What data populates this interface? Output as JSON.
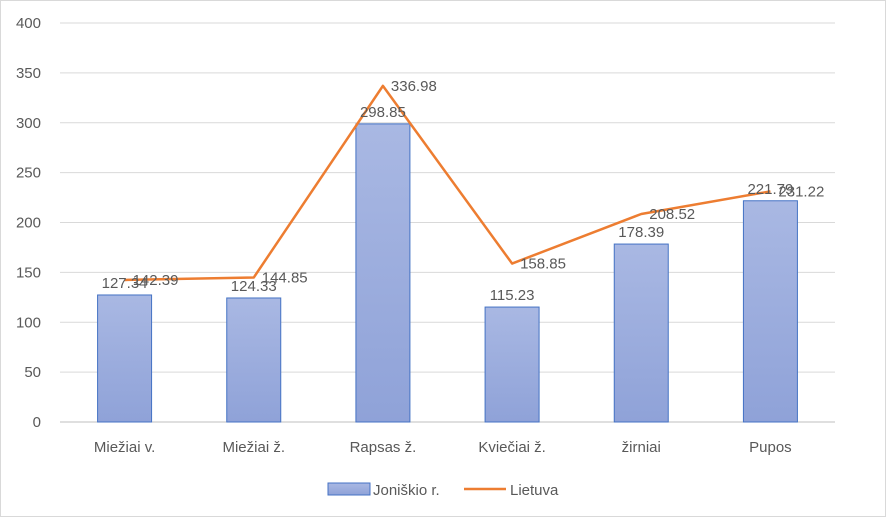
{
  "chart_data": {
    "type": "bar",
    "categories": [
      "Miežiai v.",
      "Miežiai ž.",
      "Rapsas ž.",
      "Kviečiai ž.",
      "žirniai",
      "Pupos"
    ],
    "series": [
      {
        "name": "Joniškio r.",
        "type": "bar",
        "values": [
          127.34,
          124.33,
          298.85,
          115.23,
          178.39,
          221.79
        ],
        "color": "#9fb0de"
      },
      {
        "name": "Lietuva",
        "type": "line",
        "values": [
          142.39,
          144.85,
          336.98,
          158.85,
          208.52,
          231.22
        ],
        "color": "#ed7d31"
      }
    ],
    "y_ticks": [
      "0",
      "50",
      "100",
      "150",
      "200",
      "250",
      "300",
      "350",
      "400"
    ],
    "ylim": [
      0,
      400
    ],
    "grid": true,
    "legend": {
      "position": "bottom"
    }
  }
}
